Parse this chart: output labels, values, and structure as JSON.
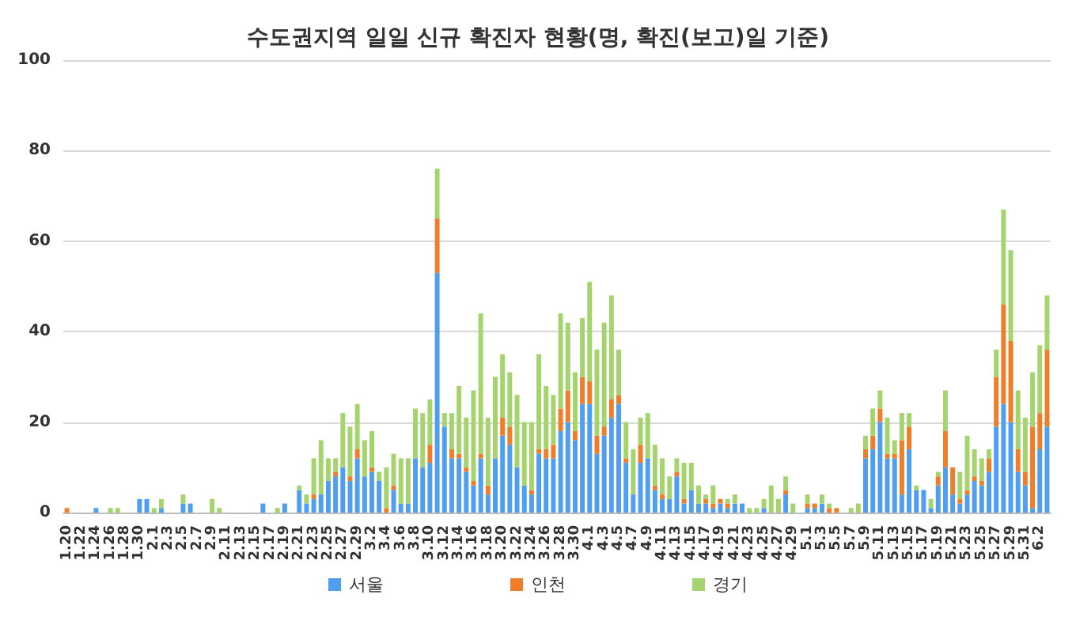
{
  "chart_data": {
    "type": "bar",
    "stacked": true,
    "title": "수도권지역 일일 신규 확진자 현황(명, 확진(보고)일 기준)",
    "categories": [
      "1.20",
      null,
      "1.22",
      null,
      "1.24",
      null,
      "1.26",
      null,
      "1.28",
      null,
      "1.30",
      null,
      "2.1",
      null,
      "2.3",
      null,
      "2.5",
      null,
      "2.7",
      null,
      "2.9",
      null,
      "2.11",
      null,
      "2.13",
      null,
      "2.15",
      null,
      "2.17",
      null,
      "2.19",
      null,
      "2.21",
      null,
      "2.23",
      null,
      "2.25",
      null,
      "2.27",
      null,
      "2.29",
      null,
      "3.2",
      null,
      "3.4",
      null,
      "3.6",
      null,
      "3.8",
      null,
      "3.10",
      null,
      "3.12",
      null,
      "3.14",
      null,
      "3.16",
      null,
      "3.18",
      null,
      "3.20",
      null,
      "3.22",
      null,
      "3.24",
      null,
      "3.26",
      null,
      "3.28",
      null,
      "3.30",
      null,
      "4.1",
      null,
      "4.3",
      null,
      "4.5",
      null,
      "4.7",
      null,
      "4.9",
      null,
      "4.11",
      null,
      "4.13",
      null,
      "4.15",
      null,
      "4.17",
      null,
      "4.19",
      null,
      "4.21",
      null,
      "4.23",
      null,
      "4.25",
      null,
      "4.27",
      null,
      "4.29",
      null,
      "5.1",
      null,
      "5.3",
      null,
      "5.5",
      null,
      "5.7",
      null,
      "5.9",
      null,
      "5.11",
      null,
      "5.13",
      null,
      "5.15",
      null,
      "5.17",
      null,
      "5.19",
      null,
      "5.21",
      null,
      "5.23",
      null,
      "5.25",
      null,
      "5.27",
      null,
      "5.29",
      null,
      "5.31",
      null,
      "6.2",
      null
    ],
    "series": [
      {
        "name": "서울",
        "color": "#4f9ef0",
        "values": [
          0,
          0,
          0,
          0,
          1,
          0,
          0,
          0,
          0,
          0,
          3,
          3,
          0,
          1,
          0,
          0,
          2,
          2,
          0,
          0,
          0,
          0,
          0,
          0,
          0,
          0,
          0,
          2,
          0,
          0,
          2,
          0,
          5,
          2,
          3,
          4,
          7,
          8,
          10,
          7,
          12,
          8,
          9,
          7,
          0,
          5,
          2,
          2,
          12,
          10,
          11,
          53,
          19,
          12,
          12,
          9,
          6,
          12,
          4,
          12,
          17,
          15,
          10,
          6,
          4,
          13,
          12,
          12,
          18,
          20,
          16,
          24,
          24,
          13,
          17,
          21,
          24,
          11,
          4,
          11,
          12,
          5,
          3,
          3,
          8,
          2,
          5,
          2,
          2,
          1,
          2,
          1,
          2,
          2,
          0,
          0,
          1,
          0,
          0,
          4,
          0,
          0,
          1,
          1,
          2,
          0,
          0,
          0,
          0,
          0,
          12,
          14,
          20,
          12,
          12,
          4,
          14,
          5,
          5,
          1,
          6,
          10,
          4,
          2,
          4,
          7,
          6,
          9,
          19,
          24,
          20,
          9,
          6,
          1,
          14,
          19
        ]
      },
      {
        "name": "인천",
        "color": "#f07d2a",
        "values": [
          1,
          0,
          0,
          0,
          0,
          0,
          0,
          0,
          0,
          0,
          0,
          0,
          0,
          0,
          0,
          0,
          0,
          0,
          0,
          0,
          0,
          0,
          0,
          0,
          0,
          0,
          0,
          0,
          0,
          0,
          0,
          0,
          0,
          0,
          1,
          0,
          0,
          1,
          0,
          1,
          2,
          0,
          1,
          0,
          1,
          1,
          0,
          0,
          0,
          0,
          4,
          12,
          0,
          2,
          1,
          1,
          1,
          1,
          2,
          0,
          4,
          4,
          0,
          0,
          1,
          1,
          2,
          3,
          5,
          7,
          2,
          6,
          5,
          4,
          2,
          4,
          2,
          1,
          0,
          4,
          0,
          1,
          1,
          0,
          1,
          1,
          0,
          0,
          1,
          1,
          1,
          1,
          0,
          0,
          0,
          0,
          0,
          0,
          0,
          1,
          0,
          0,
          1,
          1,
          0,
          1,
          1,
          0,
          0,
          0,
          2,
          3,
          3,
          1,
          1,
          12,
          5,
          0,
          0,
          0,
          2,
          8,
          6,
          1,
          1,
          1,
          1,
          3,
          11,
          22,
          18,
          5,
          3,
          18,
          8,
          17
        ]
      },
      {
        "name": "경기",
        "color": "#a5d46e",
        "values": [
          0,
          0,
          0,
          0,
          0,
          0,
          1,
          1,
          0,
          0,
          0,
          0,
          1,
          2,
          0,
          0,
          2,
          0,
          0,
          0,
          3,
          1,
          0,
          0,
          0,
          0,
          0,
          0,
          0,
          1,
          0,
          0,
          1,
          2,
          8,
          12,
          5,
          3,
          12,
          11,
          10,
          8,
          8,
          2,
          9,
          7,
          10,
          10,
          11,
          12,
          10,
          11,
          3,
          8,
          15,
          11,
          20,
          31,
          15,
          18,
          14,
          12,
          16,
          14,
          15,
          21,
          14,
          11,
          21,
          15,
          13,
          13,
          22,
          19,
          23,
          23,
          10,
          8,
          10,
          6,
          10,
          9,
          8,
          5,
          3,
          8,
          6,
          4,
          1,
          4,
          0,
          1,
          2,
          0,
          1,
          1,
          2,
          6,
          3,
          3,
          2,
          0,
          2,
          0,
          2,
          1,
          0,
          0,
          1,
          2,
          3,
          6,
          4,
          8,
          3,
          6,
          3,
          1,
          0,
          2,
          1,
          9,
          0,
          6,
          12,
          6,
          5,
          2,
          6,
          21,
          20,
          13,
          12,
          12,
          15,
          12
        ]
      }
    ],
    "ylim": [
      0,
      100
    ],
    "yticks": [
      0,
      20,
      40,
      60,
      80,
      100
    ],
    "grid": "y",
    "legend": "bottom"
  }
}
